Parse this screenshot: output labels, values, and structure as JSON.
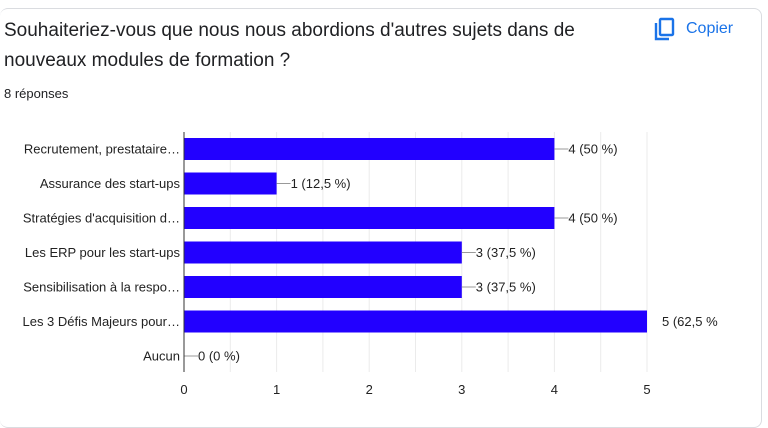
{
  "header": {
    "title": "Souhaiteriez-vous que nous nous abordions d'autres sujets dans de nouveaux modules de formation ?",
    "responses": "8 réponses",
    "copy_label": "Copier",
    "copy_icon": "copy-icon"
  },
  "colors": {
    "bar": "#2200ff",
    "accent": "#1a73e8"
  },
  "chart_data": {
    "type": "bar",
    "orientation": "horizontal",
    "categories": [
      "Recrutement, prestataire…",
      "Assurance des start-ups",
      "Stratégies d'acquisition d…",
      "Les ERP pour les start-ups",
      "Sensibilisation à la respo…",
      "Les 3 Défis Majeurs pour…",
      "Aucun"
    ],
    "values": [
      4,
      1,
      4,
      3,
      3,
      5,
      0
    ],
    "data_labels": [
      "4 (50 %)",
      "1 (12,5 %)",
      "4 (50 %)",
      "3 (37,5 %)",
      "3 (37,5 %)",
      "5 (62,5 %",
      "0 (0 %)"
    ],
    "xlim": [
      0,
      5
    ],
    "xticks": [
      "0",
      "1",
      "2",
      "3",
      "4",
      "5"
    ],
    "grid": true
  }
}
